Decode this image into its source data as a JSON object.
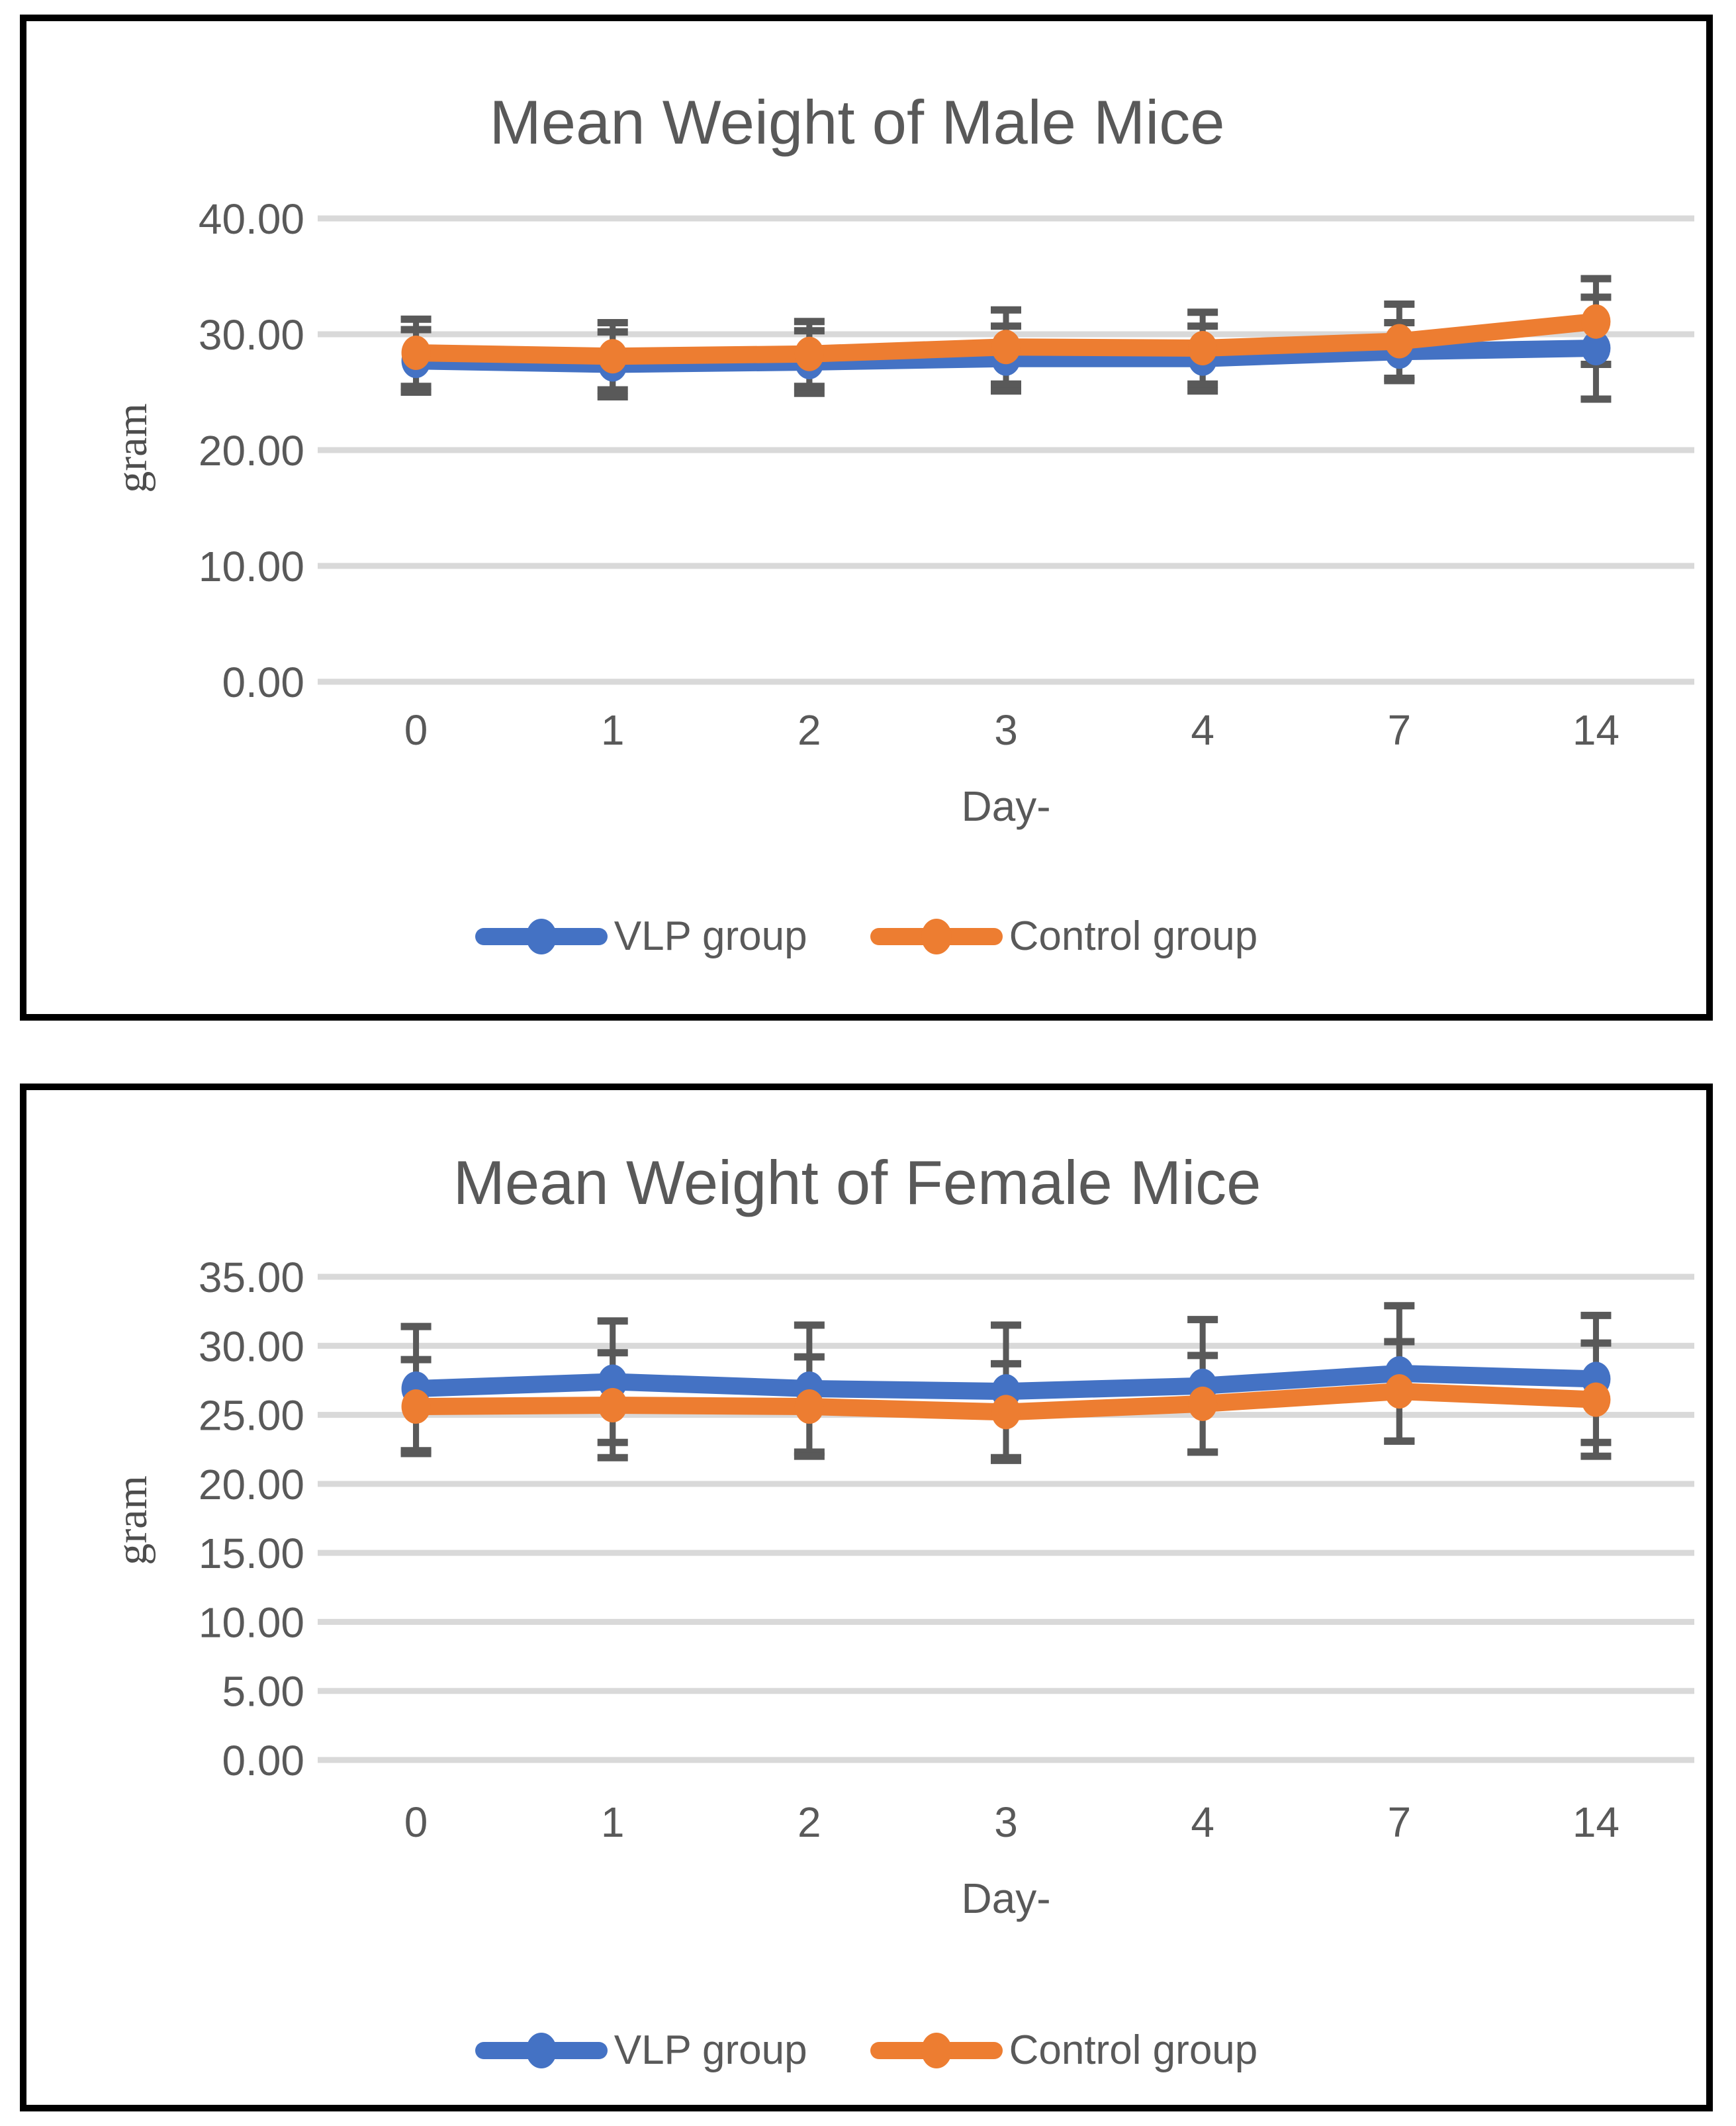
{
  "styles": {
    "grid_color": "#D9D9D9",
    "text_color": "#595959",
    "error_bar_color": "#595959",
    "panel_border_color": "#000000",
    "vlp_color": "#4472C4",
    "control_color": "#ED7D31"
  },
  "chart_data": [
    {
      "type": "line",
      "title": "Mean Weight of Male Mice",
      "xlabel": "Day-",
      "ylabel": "gram",
      "categories": [
        "0",
        "1",
        "2",
        "3",
        "4",
        "7",
        "14"
      ],
      "series": [
        {
          "name": "VLP group",
          "color": "#4472C4",
          "values": [
            27.7,
            27.4,
            27.6,
            27.9,
            27.9,
            28.5,
            28.8
          ],
          "errors": [
            2.7,
            2.8,
            2.7,
            2.8,
            2.8,
            2.5,
            4.4
          ]
        },
        {
          "name": "Control group",
          "color": "#ED7D31",
          "values": [
            28.4,
            28.1,
            28.3,
            28.9,
            28.8,
            29.4,
            31.1
          ],
          "errors": [
            2.9,
            2.9,
            2.8,
            3.2,
            3.1,
            3.2,
            3.7
          ]
        }
      ],
      "ylim": [
        0,
        40
      ],
      "ytick_step": 10,
      "ytick_labels": [
        "40.00",
        "30.00",
        "20.00",
        "10.00",
        "0.00"
      ],
      "grid": true,
      "error_bars": true,
      "legend_position": "bottom"
    },
    {
      "type": "line",
      "title": "Mean Weight of Female Mice",
      "xlabel": "Day-",
      "ylabel": "gram",
      "categories": [
        "0",
        "1",
        "2",
        "3",
        "4",
        "7",
        "14"
      ],
      "series": [
        {
          "name": "VLP group",
          "color": "#4472C4",
          "values": [
            26.9,
            27.4,
            26.9,
            26.7,
            27.1,
            28.0,
            27.6
          ],
          "errors": [
            4.5,
            4.4,
            4.6,
            4.8,
            4.8,
            4.9,
            4.6
          ]
        },
        {
          "name": "Control group",
          "color": "#ED7D31",
          "values": [
            25.6,
            25.7,
            25.6,
            25.2,
            25.8,
            26.7,
            26.1
          ],
          "errors": [
            3.4,
            3.8,
            3.6,
            3.5,
            3.5,
            3.6,
            4.1
          ]
        }
      ],
      "ylim": [
        0,
        35
      ],
      "ytick_step": 5,
      "ytick_labels": [
        "35.00",
        "30.00",
        "25.00",
        "20.00",
        "15.00",
        "10.00",
        "5.00",
        "0.00"
      ],
      "grid": true,
      "error_bars": true,
      "legend_position": "bottom"
    }
  ]
}
